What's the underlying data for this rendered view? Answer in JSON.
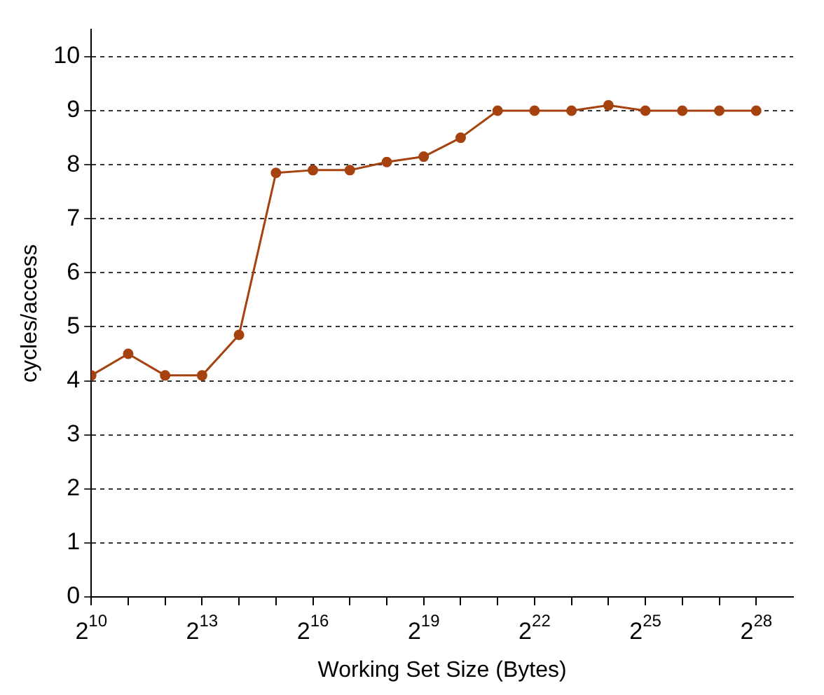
{
  "chart_data": {
    "type": "line",
    "xlabel": "Working Set Size (Bytes)",
    "ylabel": "cycles/access",
    "x": [
      1024,
      2048,
      4096,
      8192,
      16384,
      32768,
      65536,
      131072,
      262144,
      524288,
      1048576,
      2097152,
      4194304,
      8388608,
      16777216,
      33554432,
      67108864,
      134217728,
      268435456
    ],
    "series": [
      {
        "color": "#a5420f",
        "values": [
          4.1,
          4.5,
          4.1,
          4.1,
          4.85,
          7.85,
          7.9,
          7.9,
          8.05,
          8.15,
          8.5,
          9.0,
          9.0,
          9.0,
          9.1,
          9.0,
          9.0,
          9.0,
          9.0
        ]
      }
    ],
    "log": "x",
    "xlim": [
      1024,
      536870912
    ],
    "xticks": [
      {
        "value": 1024,
        "label": "2$^{10}$"
      },
      {
        "value": 2048,
        "label": null
      },
      {
        "value": 4096,
        "label": null
      },
      {
        "value": 8192,
        "label": "2$^{13}$"
      },
      {
        "value": 16384,
        "label": null
      },
      {
        "value": 32768,
        "label": null
      },
      {
        "value": 65536,
        "label": "2$^{16}$"
      },
      {
        "value": 131072,
        "label": null
      },
      {
        "value": 262144,
        "label": null
      },
      {
        "value": 524288,
        "label": "2$^{19}$"
      },
      {
        "value": 1048576,
        "label": null
      },
      {
        "value": 2097152,
        "label": null
      },
      {
        "value": 4194304,
        "label": "2$^{22}$"
      },
      {
        "value": 8388608,
        "label": null
      },
      {
        "value": 16777216,
        "label": null
      },
      {
        "value": 33554432,
        "label": "2$^{25}$"
      },
      {
        "value": 67108864,
        "label": null
      },
      {
        "value": 134217728,
        "label": null
      },
      {
        "value": 268435456,
        "label": "2$^{28}$"
      }
    ],
    "ylim": [
      0,
      10.5
    ],
    "yticks": [
      0,
      1,
      2,
      3,
      4,
      5,
      6,
      7,
      8,
      9,
      10
    ],
    "grid": "y",
    "marker": "circle",
    "line_style": "solid",
    "legend": false
  }
}
